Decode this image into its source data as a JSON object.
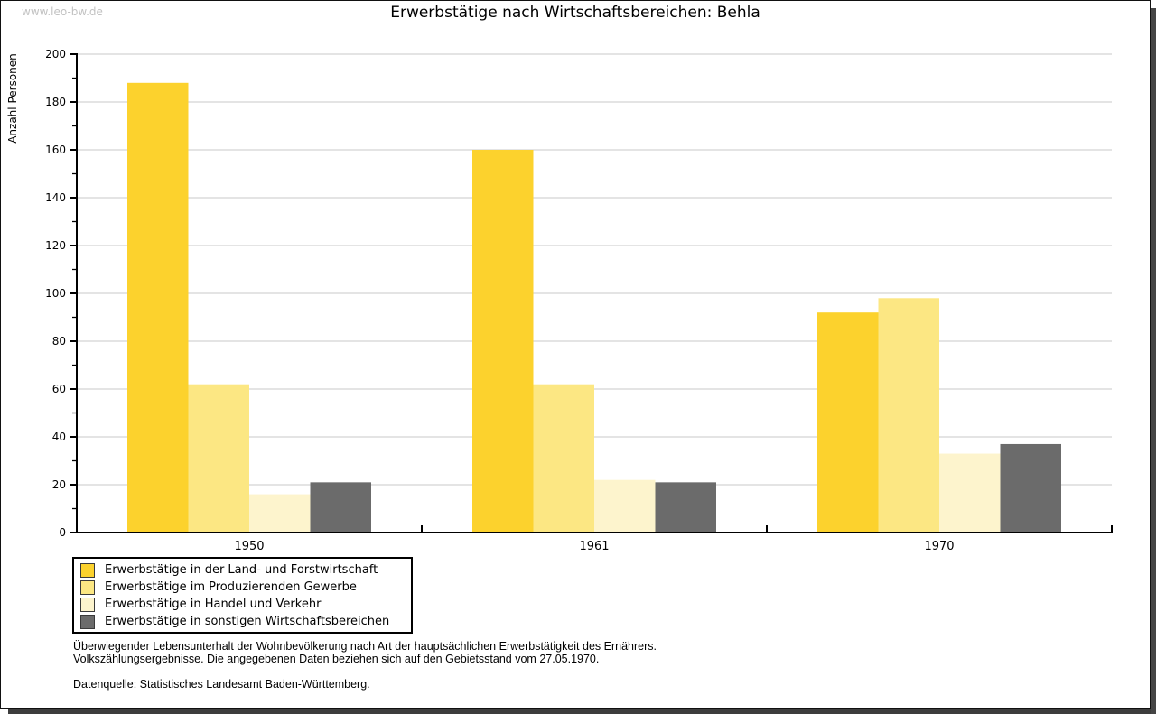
{
  "watermark": "www.leo-bw.de",
  "chart_data": {
    "type": "bar",
    "title": "Erwerbstätige nach Wirtschaftsbereichen: Behla",
    "ylabel": "Anzahl Personen",
    "xlabel": "",
    "categories": [
      "1950",
      "1961",
      "1970"
    ],
    "series": [
      {
        "name": "Erwerbstätige in der Land- und Forstwirtschaft",
        "color": "#fcd22d",
        "values": [
          188,
          160,
          92
        ]
      },
      {
        "name": "Erwerbstätige im Produzierenden Gewerbe",
        "color": "#fce783",
        "values": [
          62,
          62,
          98
        ]
      },
      {
        "name": "Erwerbstätige in Handel und Verkehr",
        "color": "#fdf4cd",
        "values": [
          16,
          22,
          33
        ]
      },
      {
        "name": "Erwerbstätige in sonstigen Wirtschaftsbereichen",
        "color": "#6b6b6b",
        "values": [
          21,
          21,
          37
        ]
      }
    ],
    "ylim": [
      0,
      200
    ],
    "ytick_step": 20,
    "minor_tick_step": 10,
    "grid": true,
    "grid_color": "#dcdcdc",
    "axis_color": "#000000",
    "legend_position": "bottom-left"
  },
  "footer": {
    "note_line1": "Überwiegender Lebensunterhalt der Wohnbevölkerung nach Art der hauptsächlichen Erwerbstätigkeit des Ernährers.",
    "note_line2": "Volkszählungsergebnisse. Die angegebenen Daten beziehen sich auf den Gebietsstand vom 27.05.1970.",
    "source": "Datenquelle: Statistisches Landesamt Baden-Württemberg."
  }
}
